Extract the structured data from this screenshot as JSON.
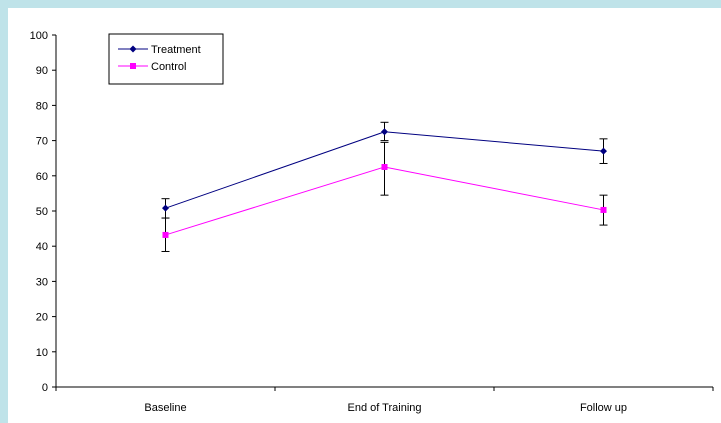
{
  "chart_data": {
    "type": "line",
    "title": "",
    "xlabel": "",
    "ylabel": "",
    "categories": [
      "Baseline",
      "End of Training",
      "Follow up"
    ],
    "ylim": [
      0,
      100
    ],
    "yticks": [
      0,
      10,
      20,
      30,
      40,
      50,
      60,
      70,
      80,
      90,
      100
    ],
    "grid": false,
    "legend_position": "top-left",
    "series": [
      {
        "name": "Treatment",
        "values": [
          50.8,
          72.5,
          67.0
        ],
        "error": [
          [
            48.0,
            53.5
          ],
          [
            70.0,
            75.2
          ],
          [
            63.5,
            70.5
          ]
        ],
        "color": "#000080",
        "marker": "diamond"
      },
      {
        "name": "Control",
        "values": [
          43.2,
          62.5,
          50.3
        ],
        "error": [
          [
            38.5,
            48.0
          ],
          [
            54.5,
            69.5
          ],
          [
            46.0,
            54.5
          ]
        ],
        "color": "#ff00ff",
        "marker": "square"
      }
    ]
  }
}
